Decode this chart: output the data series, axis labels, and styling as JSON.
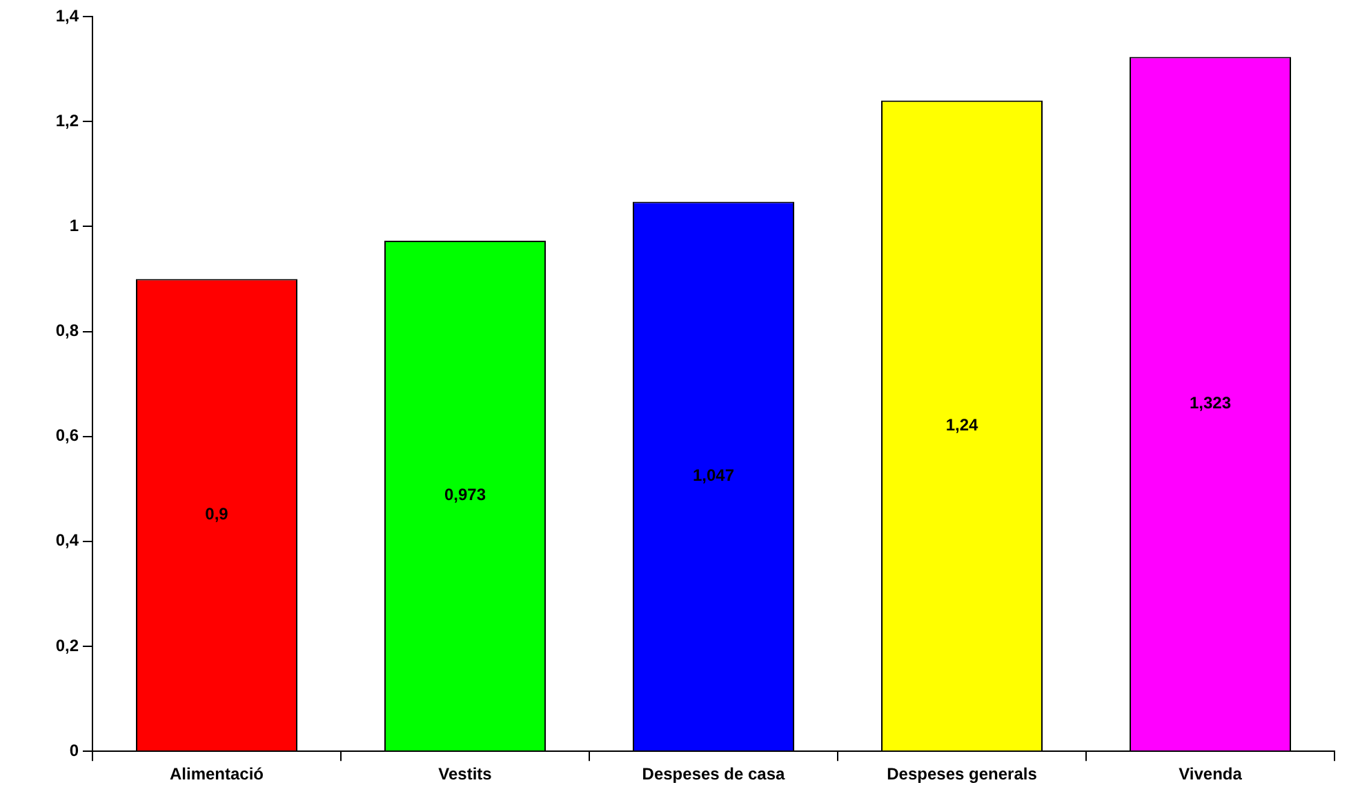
{
  "chart_data": {
    "type": "bar",
    "categories": [
      "Alimentació",
      "Vestits",
      "Despeses de casa",
      "Despeses generals",
      "Vivenda"
    ],
    "values": [
      0.9,
      0.973,
      1.047,
      1.24,
      1.323
    ],
    "colors": [
      "#ff0000",
      "#00ff00",
      "#0000ff",
      "#ffff00",
      "#ff00ff"
    ],
    "value_labels": [
      "0,9",
      "0,973",
      "1,047",
      "1,24",
      "1,323"
    ],
    "ylim": [
      0,
      1.4
    ],
    "yticks": [
      0,
      {
        "value": 0.2,
        "label": "0,2"
      },
      {
        "value": 0.4,
        "label": "0,4"
      },
      {
        "value": 0.6,
        "label": "0,6"
      },
      {
        "value": 0.8,
        "label": "0,8"
      },
      1,
      {
        "value": 1.2,
        "label": "1,2"
      },
      {
        "value": 1.4,
        "label": "1,4"
      }
    ],
    "grid": false,
    "legend": false
  }
}
